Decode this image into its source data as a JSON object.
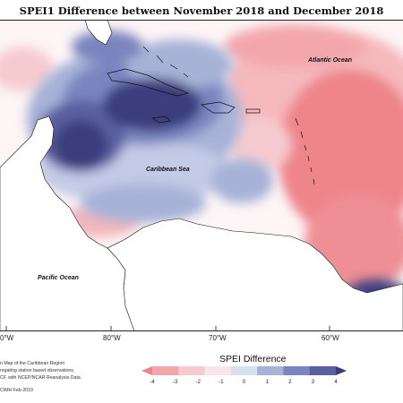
{
  "title": "SPEI1 Difference between November 2018 and December 2018",
  "map": {
    "labels": {
      "atlantic": "Atlantic Ocean",
      "caribbean": "Caribbean Sea",
      "pacific": "Pacific Ocean"
    },
    "longitude_ticks": [
      "0°W",
      "80°W",
      "70°W",
      "60°W"
    ],
    "colors": {
      "dark_blue": "#3a3d7c",
      "mid_blue": "#6e78b4",
      "light_blue": "#a7b2d8",
      "pale_blue": "#d3dbee",
      "white": "#ffffff",
      "pale_pink": "#f6d0d6",
      "light_pink": "#f0a9b0",
      "red": "#ee858b",
      "land_line": "#111111"
    }
  },
  "legend": {
    "title": "SPEI Difference",
    "ticks": [
      "-4",
      "-3",
      "-2",
      "-1",
      "0",
      "1",
      "2",
      "3",
      "4"
    ],
    "colors": [
      "#ee858b",
      "#f3a7ad",
      "#f6cbd0",
      "#fae6e8",
      "#d7e0ee",
      "#a7b2d8",
      "#7a85c0",
      "#5a5fa0",
      "#3a3d7c"
    ]
  },
  "footnotes": [
    "n Map of the Caribbean Region",
    "regating station based observations,",
    "CF, with NCEP/NCAR Reanalysis Data.",
    "CIMH Feb-2019"
  ]
}
